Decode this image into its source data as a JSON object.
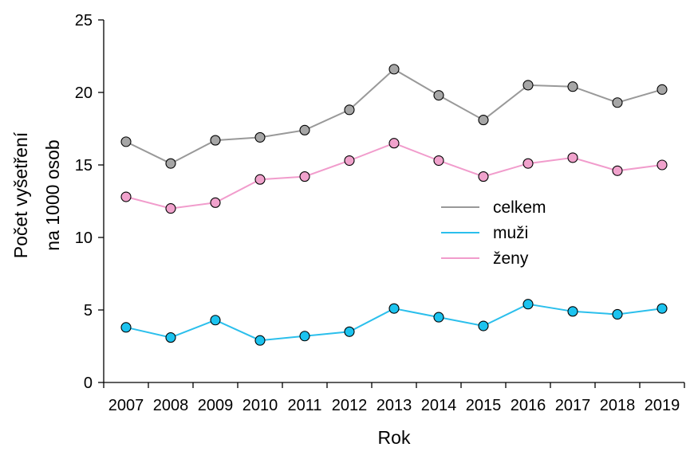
{
  "chart_data": {
    "type": "line",
    "title": "",
    "xlabel": "Rok",
    "ylabel_lines": [
      "Počet vyšetření",
      "na 1000 osob"
    ],
    "categories": [
      "2007",
      "2008",
      "2009",
      "2010",
      "2011",
      "2012",
      "2013",
      "2014",
      "2015",
      "2016",
      "2017",
      "2018",
      "2019"
    ],
    "ylim": [
      0,
      25
    ],
    "yticks": [
      "0",
      "5",
      "10",
      "15",
      "20",
      "25"
    ],
    "grid": false,
    "legend_position": "center-right",
    "series": [
      {
        "name": "celkem",
        "color": "#999999",
        "marker_fill": "#a6a6a6",
        "values": [
          16.6,
          15.1,
          16.7,
          16.9,
          17.4,
          18.8,
          21.6,
          19.8,
          18.1,
          20.5,
          20.4,
          19.3,
          20.2
        ]
      },
      {
        "name": "muži",
        "color": "#2bbfec",
        "marker_fill": "#1cc3ef",
        "values": [
          3.8,
          3.1,
          4.3,
          2.9,
          3.2,
          3.5,
          5.1,
          4.5,
          3.9,
          5.4,
          4.9,
          4.7,
          5.1
        ]
      },
      {
        "name": "ženy",
        "color": "#f19ccc",
        "marker_fill": "#f0a2cc",
        "values": [
          12.8,
          12.0,
          12.4,
          14.0,
          14.2,
          15.3,
          16.5,
          15.3,
          14.2,
          15.1,
          15.5,
          14.6,
          15.0
        ]
      }
    ]
  }
}
